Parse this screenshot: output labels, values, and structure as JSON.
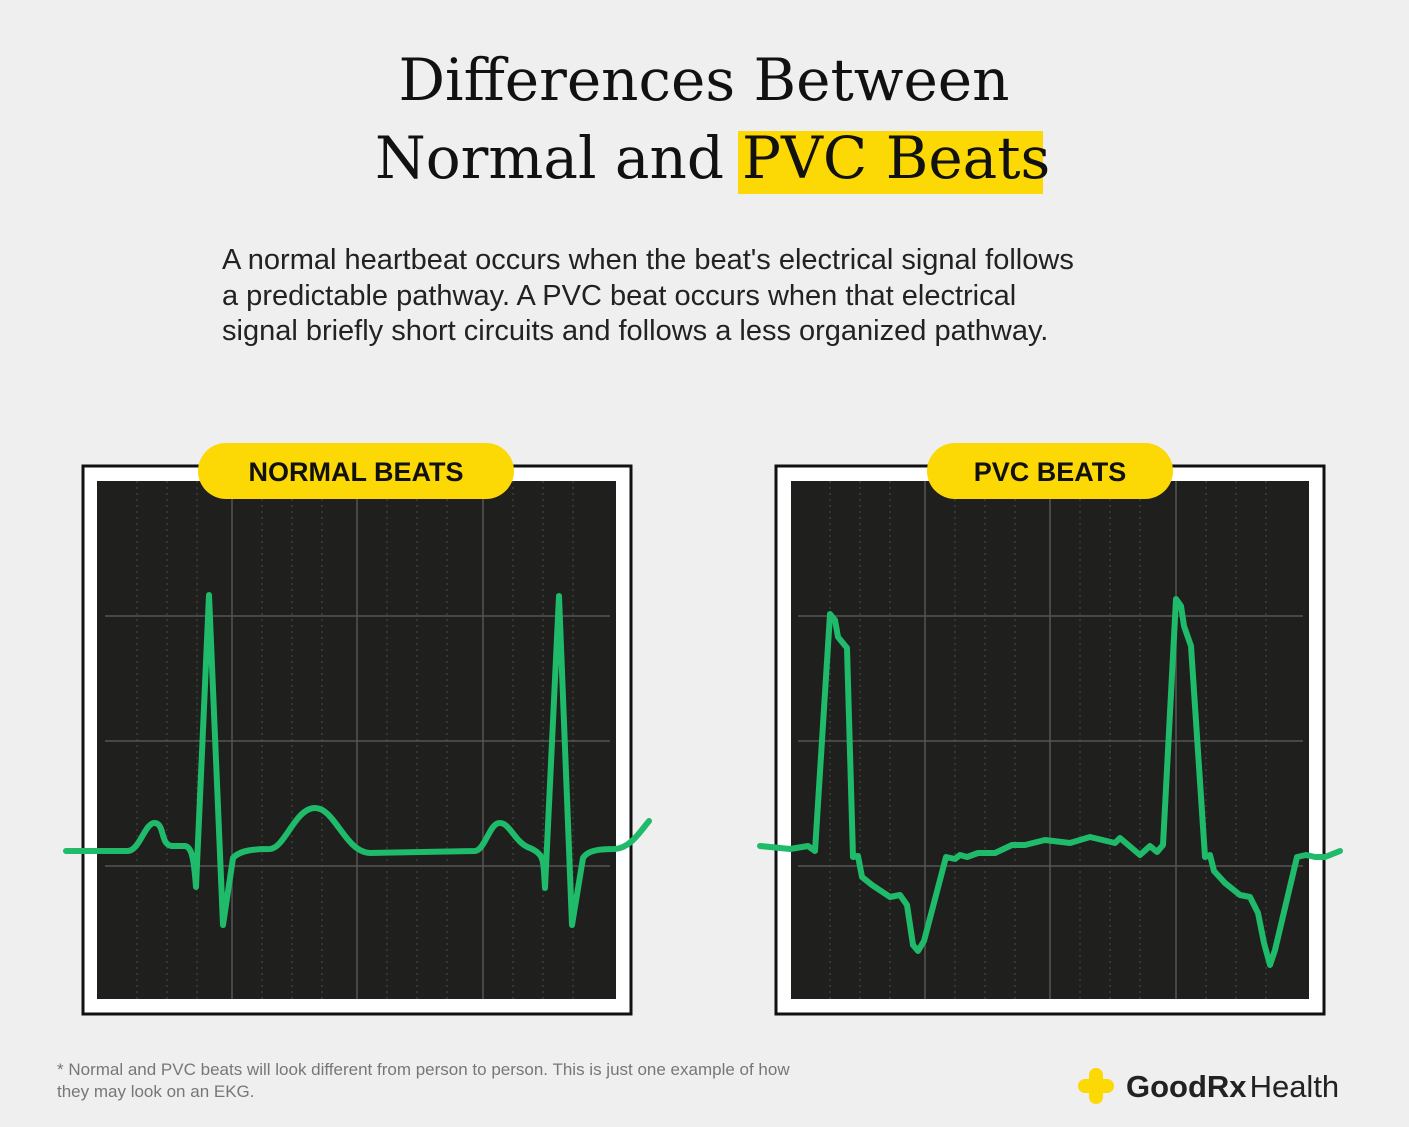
{
  "header": {
    "title_line1": "Differences Between",
    "title_line2": "Normal and",
    "title_highlight": "PVC Beats"
  },
  "description": {
    "lines": [
      "A normal heartbeat occurs when the beat's electrical signal follows",
      "a predictable pathway.  A PVC beat occurs when that electrical",
      "signal briefly short circuits and follows a less organized pathway."
    ]
  },
  "panels": [
    {
      "label": "NORMAL BEATS"
    },
    {
      "label": "PVC BEATS"
    }
  ],
  "footnote": {
    "lines": [
      "* Normal and PVC beats will look different from person to person. This is just one example of how",
      "they may look on an EKG."
    ]
  },
  "logo": {
    "brand": "GoodRx",
    "suffix": "Health"
  }
}
